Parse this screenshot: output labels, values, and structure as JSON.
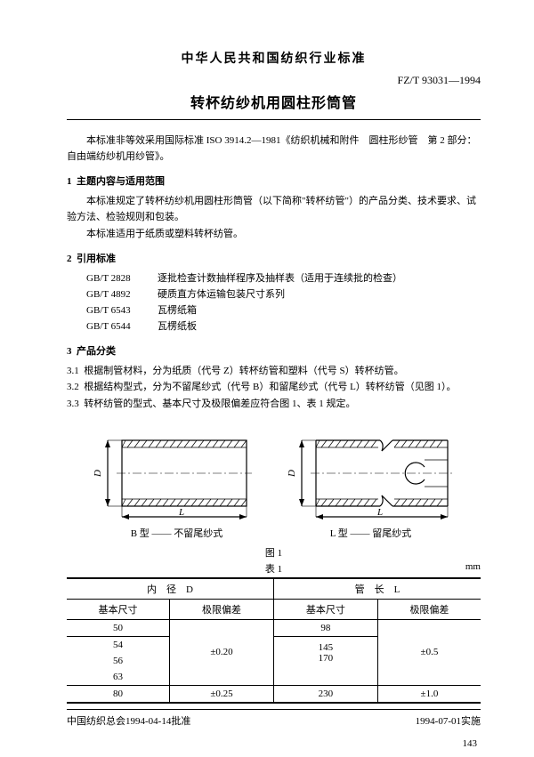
{
  "header": {
    "org_title": "中华人民共和国纺织行业标准",
    "doc_code": "FZ/T 93031—1994",
    "main_title": "转杯纺纱机用圆柱形筒管"
  },
  "intro": "本标准非等效采用国际标准 ISO 3914.2—1981《纺织机械和附件　圆柱形纱管　第 2 部分：自由端纺纱机用纱管》。",
  "sections": {
    "s1": {
      "num": "1",
      "title": "主题内容与适用范围",
      "p1": "本标准规定了转杯纺纱机用圆柱形筒管（以下简称\"转杯纺管\"）的产品分类、技术要求、试验方法、检验规则和包装。",
      "p2": "本标准适用于纸质或塑料转杯纺管。"
    },
    "s2": {
      "num": "2",
      "title": "引用标准",
      "refs": [
        {
          "code": "GB/T 2828",
          "txt": "逐批检查计数抽样程序及抽样表（适用于连续批的检查）"
        },
        {
          "code": "GB/T 4892",
          "txt": "硬质直方体运输包装尺寸系列"
        },
        {
          "code": "GB/T 6543",
          "txt": "瓦楞纸箱"
        },
        {
          "code": "GB/T 6544",
          "txt": "瓦楞纸板"
        }
      ]
    },
    "s3": {
      "num": "3",
      "title": "产品分类",
      "items": [
        {
          "n": "3.1",
          "t": "根据制管材料，分为纸质（代号 Z）转杯纺管和塑料（代号 S）转杯纺管。"
        },
        {
          "n": "3.2",
          "t": "根据结构型式，分为不留尾纱式（代号 B）和留尾纱式（代号 L）转杯纺管（见图 1）。"
        },
        {
          "n": "3.3",
          "t": "转杯纺管的型式、基本尺寸及极限偏差应符合图 1、表 1 规定。"
        }
      ]
    }
  },
  "figures": {
    "cap_b": "B 型 —— 不留尾纱式",
    "cap_l": "L 型 —— 留尾纱式",
    "fig_label": "图 1",
    "table_label": "表 1",
    "unit": "mm",
    "stroke": "#000000",
    "hatch": "#000000",
    "dim_D": "D",
    "dim_L": "L"
  },
  "table": {
    "h_D": "内　径　D",
    "h_L": "管　长　L",
    "h_basic": "基本尺寸",
    "h_tol": "极限偏差",
    "rows": [
      {
        "d": "50",
        "dtol": "±0.20",
        "l": "98",
        "ltol": "±0.5"
      },
      {
        "d": "54",
        "dtol": "",
        "l": "145",
        "ltol": ""
      },
      {
        "d": "56",
        "dtol": "",
        "l": "170",
        "ltol": ""
      },
      {
        "d": "63",
        "dtol": "",
        "l": "",
        "ltol": ""
      },
      {
        "d": "80",
        "dtol": "±0.25",
        "l": "230",
        "ltol": "±1.0"
      }
    ]
  },
  "footer": {
    "left": "中国纺织总会1994-04-14批准",
    "right": "1994-07-01实施",
    "page": "143"
  }
}
